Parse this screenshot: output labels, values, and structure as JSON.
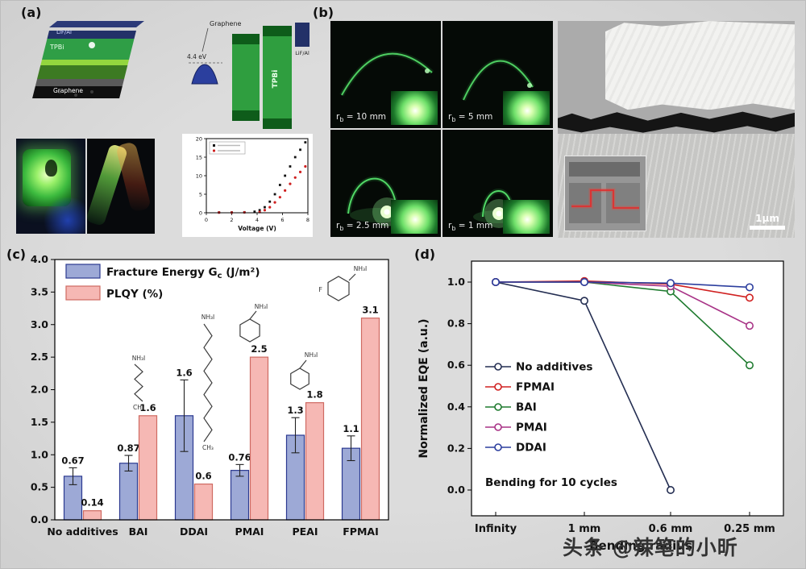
{
  "watermark": "头条 @辣笔的小昕",
  "panel_labels": {
    "a": "(a)",
    "b": "(b)",
    "c": "(c)",
    "d": "(d)"
  },
  "panel_a": {
    "stack": {
      "lif_al": "LiF/Al",
      "tpbi": "TPBi",
      "graphene": "Graphene"
    },
    "band": {
      "graphene": "Graphene",
      "wf": "4.4 eV",
      "tpbi": "TPBi",
      "lif_al": "LiF/Al"
    }
  },
  "panel_b": {
    "r_sym": "r",
    "r_sub": "b",
    "photos": [
      {
        "label": " = 10 mm"
      },
      {
        "label": " = 5 mm"
      },
      {
        "label": " = 2.5 mm"
      },
      {
        "label": " = 1 mm"
      }
    ],
    "scale_label": "1μm"
  },
  "chart_data": [
    {
      "id": "fracture_plqy",
      "type": "bar",
      "categories": [
        "No additives",
        "BAI",
        "DDAI",
        "PMAI",
        "PEAI",
        "FPMAI"
      ],
      "ylim": [
        0,
        4.0
      ],
      "yticks": [
        "0.0",
        "0.5",
        "1.0",
        "1.5",
        "2.0",
        "2.5",
        "3.0",
        "3.5",
        "4.0"
      ],
      "grid": false,
      "legend_position": "top-left",
      "legend": [
        {
          "pre": "Fracture Energy G",
          "sub": "c",
          "post": " (J/m²)",
          "fill": "#9da9d6",
          "stroke": "#2b3990"
        },
        {
          "pre": "PLQY (%)",
          "sub": "",
          "post": "",
          "fill": "#f6b8b4",
          "stroke": "#cf6a62"
        }
      ],
      "series": [
        {
          "name": "Fracture Energy Gc (J/m²)",
          "fill": "#9da9d6",
          "stroke": "#2b3990",
          "values": [
            0.67,
            0.87,
            1.6,
            0.76,
            1.3,
            1.1
          ],
          "errors": [
            0.13,
            0.12,
            0.55,
            0.09,
            0.27,
            0.19
          ],
          "labels": [
            "0.67",
            "0.87",
            "1.6",
            "0.76",
            "1.3",
            "1.1"
          ]
        },
        {
          "name": "PLQY (%)",
          "fill": "#f6b8b4",
          "stroke": "#cf6a62",
          "values": [
            0.14,
            1.6,
            0.55,
            2.5,
            1.8,
            3.1
          ],
          "errors": null,
          "labels": [
            "0.14",
            "1.6",
            "0.6",
            "2.5",
            "1.8",
            "3.1"
          ]
        }
      ],
      "molecule_labels": {
        "nh3i": "NH₃I",
        "ch3": "CH₃",
        "f": "F"
      }
    },
    {
      "id": "bending_eqe",
      "type": "line",
      "x_categories": [
        "Infinity",
        "1 mm",
        "0.6 mm",
        "0.25 mm"
      ],
      "yticks": [
        "1.0",
        "0.8",
        "0.6",
        "0.4",
        "0.2",
        "0.0"
      ],
      "ylabel": "Normalized EQE (a.u.)",
      "xlabel": "Bending radius",
      "annotation": "Bending for 10 cycles",
      "grid": false,
      "legend_position": "left-middle",
      "series": [
        {
          "name": "No additives",
          "color": "#242e52",
          "values": [
            1.0,
            0.91,
            0.0,
            null
          ]
        },
        {
          "name": "FPMAI",
          "color": "#d02020",
          "values": [
            1.0,
            1.005,
            0.99,
            0.925
          ]
        },
        {
          "name": "BAI",
          "color": "#1e7a2e",
          "values": [
            1.0,
            1.0,
            0.955,
            0.6
          ]
        },
        {
          "name": "PMAI",
          "color": "#a83286",
          "values": [
            1.0,
            1.0,
            0.98,
            0.79
          ]
        },
        {
          "name": "DDAI",
          "color": "#2c3e9e",
          "values": [
            1.0,
            1.0,
            0.995,
            0.975
          ]
        }
      ]
    },
    {
      "id": "jv_efficiency",
      "type": "scatter",
      "xlabel": "Voltage (V)",
      "xticks": [
        "0",
        "2",
        "4",
        "6",
        "8"
      ],
      "yticks": [
        "0",
        "5",
        "10",
        "15",
        "20"
      ],
      "xlim": [
        0,
        8
      ],
      "ylim": [
        0,
        20
      ],
      "series": [
        {
          "name": "black-squares",
          "color": "#111111",
          "x": [
            1,
            2,
            3,
            3.8,
            4.2,
            4.6,
            5,
            5.4,
            5.8,
            6.2,
            6.6,
            7,
            7.4,
            7.8
          ],
          "y": [
            0.1,
            0.1,
            0.15,
            0.3,
            0.7,
            1.5,
            3,
            5,
            7.5,
            10,
            12.5,
            15,
            17,
            19
          ]
        },
        {
          "name": "red-dots",
          "color": "#cf2020",
          "x": [
            1,
            2,
            3,
            4.2,
            4.6,
            5,
            5.4,
            5.8,
            6.2,
            6.6,
            7,
            7.4,
            7.8
          ],
          "y": [
            0.05,
            0.05,
            0.1,
            0.2,
            0.7,
            1.5,
            2.8,
            4.2,
            6,
            7.8,
            9.5,
            11,
            12.5
          ]
        }
      ]
    }
  ]
}
